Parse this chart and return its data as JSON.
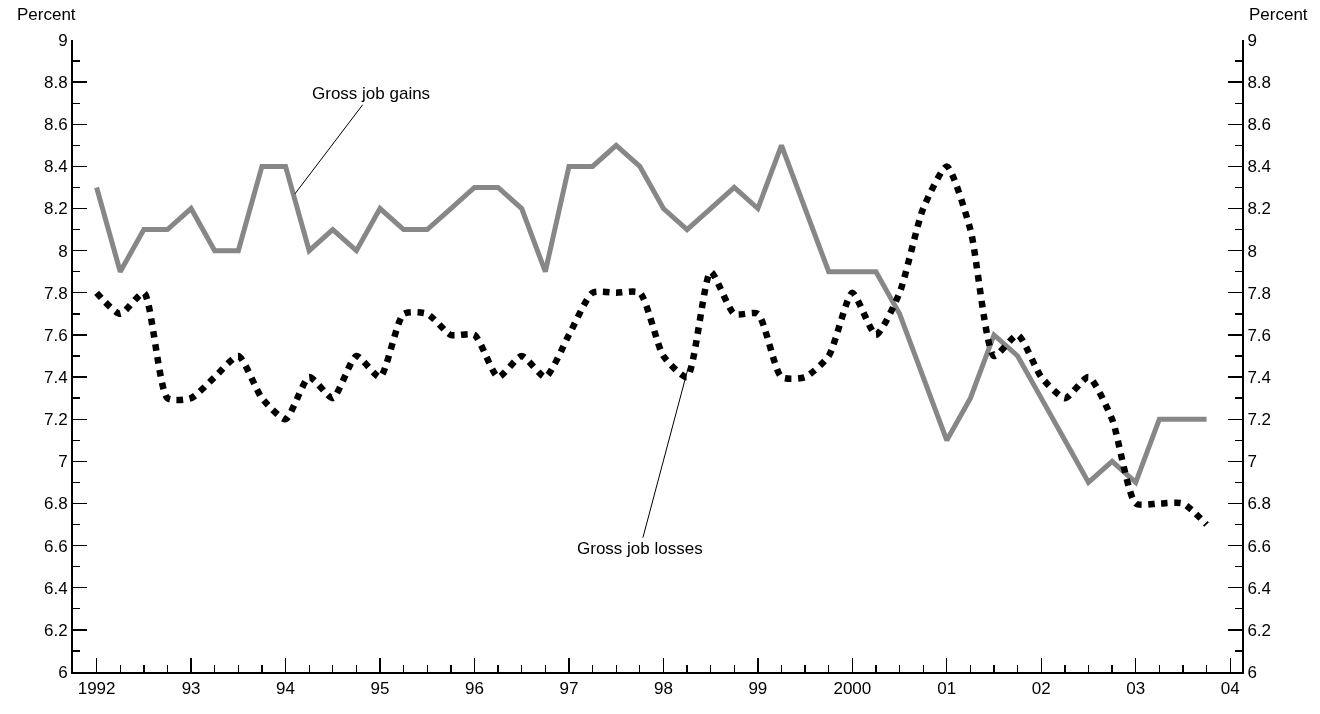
{
  "chart_data": {
    "type": "line",
    "ylabel": "Percent",
    "y2label": "Percent",
    "x": [
      1992,
      1992.25,
      1992.5,
      1992.75,
      1993,
      1993.25,
      1993.5,
      1993.75,
      1994,
      1994.25,
      1994.5,
      1994.75,
      1995,
      1995.25,
      1995.5,
      1995.75,
      1996,
      1996.25,
      1996.5,
      1996.75,
      1997,
      1997.25,
      1997.5,
      1997.75,
      1998,
      1998.25,
      1998.5,
      1998.75,
      1999,
      1999.25,
      1999.5,
      1999.75,
      2000,
      2000.25,
      2000.5,
      2000.75,
      2001,
      2001.25,
      2001.5,
      2001.75,
      2002,
      2002.25,
      2002.5,
      2002.75,
      2003,
      2003.25,
      2003.5,
      2003.75
    ],
    "series": [
      {
        "color": "#878787",
        "line_style": "solid",
        "values": [
          8.3,
          7.9,
          8.1,
          8.1,
          8.2,
          8.0,
          8.0,
          8.4,
          8.4,
          8.0,
          8.1,
          8.0,
          8.2,
          8.1,
          8.1,
          8.2,
          8.3,
          8.3,
          8.2,
          7.9,
          8.4,
          8.4,
          8.5,
          8.4,
          8.2,
          8.1,
          8.2,
          8.3,
          8.2,
          8.5,
          8.2,
          7.9,
          7.9,
          7.9,
          7.7,
          7.4,
          7.1,
          7.3,
          7.6,
          7.5,
          7.3,
          7.1,
          6.9,
          7.0,
          6.9,
          7.2,
          7.2,
          7.2
        ]
      },
      {
        "color": "#000000",
        "line_style": "dotted",
        "values": [
          7.8,
          7.7,
          7.8,
          7.3,
          7.3,
          7.4,
          7.5,
          7.3,
          7.2,
          7.4,
          7.3,
          7.5,
          7.4,
          7.7,
          7.7,
          7.6,
          7.6,
          7.4,
          7.5,
          7.4,
          7.6,
          7.8,
          7.8,
          7.8,
          7.5,
          7.4,
          7.9,
          7.7,
          7.7,
          7.4,
          7.4,
          7.5,
          7.8,
          7.6,
          7.8,
          8.2,
          8.4,
          8.1,
          7.5,
          7.6,
          7.4,
          7.3,
          7.4,
          7.2,
          6.8,
          6.8,
          6.8,
          6.7
        ]
      }
    ],
    "annotations": [
      {
        "text": "Gross job gains",
        "x": 1994.1,
        "y": 8.27
      },
      {
        "text": "Gross job losses",
        "x": 1998.26,
        "y": 7.44
      }
    ],
    "xlim": [
      1991.75,
      2004.125
    ],
    "xticks": [
      1992,
      {
        "value": 1993,
        "label": "93"
      },
      {
        "value": 1994,
        "label": "94"
      },
      {
        "value": 1995,
        "label": "95"
      },
      {
        "value": 1996,
        "label": "96"
      },
      {
        "value": 1997,
        "label": "97"
      },
      {
        "value": 1998,
        "label": "98"
      },
      {
        "value": 1999,
        "label": "99"
      },
      2000,
      {
        "value": 2001,
        "label": "01"
      },
      {
        "value": 2002,
        "label": "02"
      },
      {
        "value": 2003,
        "label": "03"
      },
      {
        "value": 2004,
        "label": "04"
      }
    ],
    "ylim": [
      6,
      9
    ],
    "yticks": [
      6,
      6.2,
      6.4,
      6.6,
      6.8,
      7,
      7.2,
      7.4,
      7.6,
      7.8,
      8,
      8.2,
      8.4,
      8.6,
      8.8,
      9
    ],
    "y2lim": [
      6,
      9
    ],
    "y2ticks": [
      6,
      6.2,
      6.4,
      6.6,
      6.8,
      7,
      7.2,
      7.4,
      7.6,
      7.8,
      8,
      8.2,
      8.4,
      8.6,
      8.8,
      9
    ]
  }
}
